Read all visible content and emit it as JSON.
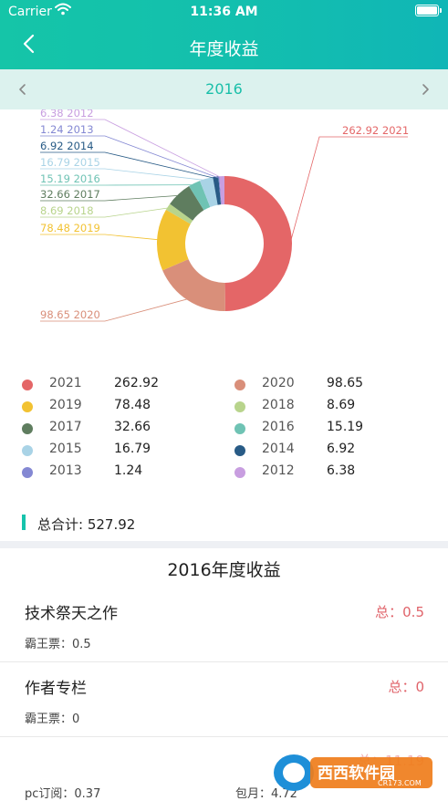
{
  "status_bar": {
    "carrier": "Carrier",
    "time": "11:36 AM"
  },
  "header": {
    "title": "年度收益"
  },
  "year_selector": {
    "year": "2016"
  },
  "chart_data": {
    "type": "pie",
    "donut": true,
    "categories": [
      "2021",
      "2020",
      "2019",
      "2018",
      "2017",
      "2016",
      "2015",
      "2014",
      "2013",
      "2012"
    ],
    "values": [
      262.92,
      98.65,
      78.48,
      8.69,
      32.66,
      15.19,
      16.79,
      6.92,
      1.24,
      6.38
    ],
    "slice_labels": [
      "262.92 2021",
      "98.65 2020",
      "78.48 2019",
      "8.69 2018",
      "32.66 2017",
      "15.19 2016",
      "16.79 2015",
      "6.92 2014",
      "1.24 2013",
      "6.38 2012"
    ],
    "colors": [
      "#e46667",
      "#d98f7a",
      "#f2c232",
      "#b8d48c",
      "#5f7d5f",
      "#6fc3b4",
      "#a9d3e6",
      "#285b86",
      "#8488d3",
      "#c89ee0"
    ],
    "legend_placement": "bottom"
  },
  "legend": {
    "items": [
      {
        "year": "2021",
        "value": "262.92"
      },
      {
        "year": "2020",
        "value": "98.65"
      },
      {
        "year": "2019",
        "value": "78.48"
      },
      {
        "year": "2018",
        "value": "8.69"
      },
      {
        "year": "2017",
        "value": "32.66"
      },
      {
        "year": "2016",
        "value": "15.19"
      },
      {
        "year": "2015",
        "value": "16.79"
      },
      {
        "year": "2014",
        "value": "6.92"
      },
      {
        "year": "2013",
        "value": "1.24"
      },
      {
        "year": "2012",
        "value": "6.38"
      }
    ]
  },
  "total": {
    "label": "总合计: 527.92"
  },
  "section": {
    "title": "2016年度收益"
  },
  "items": [
    {
      "name": "技术祭天之作",
      "total": "总：0.5",
      "sub": "霸王票：0.5"
    },
    {
      "name": "作者专栏",
      "total": "总：0",
      "sub": "霸王票：0"
    }
  ],
  "partial_item": {
    "total": "总：11.19",
    "pc": "pc订阅：0.37",
    "monthly": "包月：4.72"
  },
  "watermark": {
    "text": "西西软件园",
    "url": "CR173.COM"
  }
}
